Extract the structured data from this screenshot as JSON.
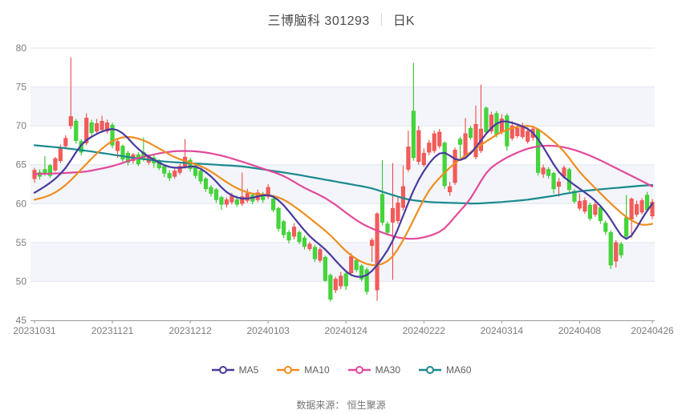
{
  "chart_data": {
    "type": "candlestick",
    "title": "三博脑科 301293",
    "subtitle": "日K",
    "source_note": "数据来源： 恒生聚源",
    "y_axis": {
      "min": 45,
      "max": 80,
      "ticks": [
        80,
        75,
        70,
        65,
        60,
        55,
        50,
        45
      ]
    },
    "x_axis": {
      "tick_labels": [
        "20231031",
        "20231121",
        "20231212",
        "20240103",
        "20240124",
        "20240222",
        "20240314",
        "20240408",
        "20240426"
      ],
      "tick_indices": [
        0,
        15,
        30,
        45,
        60,
        75,
        90,
        105,
        119
      ],
      "total_candles": 120
    },
    "legend": [
      {
        "label": "MA5",
        "color": "#473a9e"
      },
      {
        "label": "MA10",
        "color": "#ef8d20"
      },
      {
        "label": "MA30",
        "color": "#e2499b"
      },
      {
        "label": "MA60",
        "color": "#198a8e"
      }
    ],
    "colors": {
      "up": "#f25c5a",
      "up_stroke": "#ef4b49",
      "down": "#44d63a",
      "down_stroke": "#30c426",
      "grid": "#e2e6f0",
      "band": "#f3f5fa",
      "axis": "#999999",
      "tick_label": "#7d7d7d",
      "title": "#4a4a4a",
      "legend_label": "#5f5f5f",
      "source": "#757575"
    },
    "candles_format": [
      "open",
      "close",
      "low",
      "high"
    ],
    "candles": [
      [
        63.2,
        64.3,
        62.7,
        64.6
      ],
      [
        64.0,
        63.5,
        63.1,
        64.4
      ],
      [
        64.4,
        63.9,
        63.6,
        66.1
      ],
      [
        64.9,
        63.6,
        63.3,
        65.1
      ],
      [
        64.3,
        65.8,
        64.1,
        66.0
      ],
      [
        65.5,
        67.2,
        65.2,
        67.6
      ],
      [
        67.4,
        68.4,
        67.0,
        68.8
      ],
      [
        70.0,
        71.2,
        69.6,
        78.8
      ],
      [
        70.6,
        68.1,
        67.7,
        70.9
      ],
      [
        68.0,
        66.6,
        66.2,
        68.3
      ],
      [
        67.8,
        71.0,
        67.5,
        71.6
      ],
      [
        70.4,
        69.1,
        68.7,
        70.8
      ],
      [
        69.3,
        70.3,
        68.9,
        70.9
      ],
      [
        69.5,
        70.6,
        69.1,
        71.3
      ],
      [
        69.3,
        70.4,
        69.0,
        70.8
      ],
      [
        70.1,
        67.5,
        67.1,
        70.4
      ],
      [
        66.8,
        68.0,
        65.9,
        68.2
      ],
      [
        67.4,
        65.7,
        65.3,
        67.6
      ],
      [
        66.5,
        65.3,
        64.9,
        66.8
      ],
      [
        65.5,
        66.3,
        65.1,
        66.5
      ],
      [
        66.3,
        65.1,
        64.8,
        66.6
      ],
      [
        66.6,
        65.7,
        65.4,
        68.5
      ],
      [
        65.3,
        66.0,
        65.0,
        66.3
      ],
      [
        65.9,
        65.2,
        64.6,
        66.2
      ],
      [
        65.4,
        64.6,
        64.3,
        65.7
      ],
      [
        64.8,
        63.9,
        63.4,
        65.0
      ],
      [
        63.9,
        63.3,
        62.9,
        64.3
      ],
      [
        63.5,
        64.2,
        63.2,
        64.5
      ],
      [
        64.0,
        64.8,
        63.7,
        65.1
      ],
      [
        64.8,
        66.0,
        64.5,
        68.3
      ],
      [
        65.6,
        64.5,
        64.1,
        65.9
      ],
      [
        64.9,
        63.6,
        63.2,
        65.1
      ],
      [
        64.2,
        62.9,
        62.5,
        64.4
      ],
      [
        63.2,
        61.9,
        61.5,
        63.4
      ],
      [
        62.1,
        61.3,
        60.9,
        62.4
      ],
      [
        61.8,
        60.5,
        60.1,
        62.0
      ],
      [
        60.8,
        59.9,
        59.2,
        61.0
      ],
      [
        59.9,
        60.5,
        59.5,
        60.8
      ],
      [
        60.2,
        61.0,
        59.9,
        61.4
      ],
      [
        60.5,
        59.9,
        59.6,
        61.0
      ],
      [
        60.0,
        60.9,
        59.7,
        64.0
      ],
      [
        60.4,
        61.3,
        60.1,
        61.9
      ],
      [
        61.1,
        60.3,
        59.9,
        61.4
      ],
      [
        60.5,
        61.4,
        60.2,
        61.8
      ],
      [
        61.2,
        60.5,
        60.1,
        61.5
      ],
      [
        60.9,
        62.1,
        60.6,
        62.5
      ],
      [
        60.6,
        59.2,
        58.9,
        60.9
      ],
      [
        59.4,
        56.8,
        56.4,
        59.6
      ],
      [
        57.7,
        56.0,
        55.6,
        57.9
      ],
      [
        56.3,
        55.3,
        54.9,
        56.6
      ],
      [
        55.8,
        57.0,
        55.4,
        57.5
      ],
      [
        56.3,
        55.1,
        54.8,
        56.6
      ],
      [
        55.6,
        54.5,
        54.1,
        55.9
      ],
      [
        54.2,
        54.8,
        53.9,
        55.1
      ],
      [
        54.4,
        52.9,
        52.5,
        54.7
      ],
      [
        52.7,
        54.1,
        52.4,
        54.4
      ],
      [
        53.1,
        50.1,
        50.0,
        53.3
      ],
      [
        50.8,
        47.7,
        47.4,
        51.0
      ],
      [
        48.9,
        50.3,
        48.5,
        50.6
      ],
      [
        49.4,
        50.7,
        49.0,
        51.2
      ],
      [
        51.0,
        49.4,
        48.9,
        51.2
      ],
      [
        51.1,
        53.2,
        50.8,
        53.6
      ],
      [
        52.7,
        51.5,
        51.2,
        53.0
      ],
      [
        52.0,
        50.3,
        50.0,
        52.2
      ],
      [
        51.5,
        48.7,
        48.3,
        51.8
      ],
      [
        54.6,
        55.3,
        52.5,
        55.6
      ],
      [
        48.9,
        58.7,
        47.5,
        58.9
      ],
      [
        61.2,
        57.6,
        57.2,
        65.6
      ],
      [
        57.4,
        56.3,
        55.9,
        57.7
      ],
      [
        57.6,
        59.4,
        50.2,
        65.2
      ],
      [
        57.8,
        60.1,
        57.4,
        61.0
      ],
      [
        59.5,
        62.2,
        59.1,
        64.9
      ],
      [
        64.4,
        67.3,
        64.1,
        69.4
      ],
      [
        71.9,
        65.9,
        65.5,
        78.1
      ],
      [
        65.4,
        69.4,
        65.0,
        70.0
      ],
      [
        65.0,
        66.5,
        64.7,
        67.1
      ],
      [
        66.6,
        67.8,
        66.2,
        68.2
      ],
      [
        66.8,
        69.0,
        66.5,
        69.4
      ],
      [
        67.4,
        69.2,
        67.1,
        69.6
      ],
      [
        67.8,
        62.3,
        61.9,
        68.0
      ],
      [
        61.5,
        62.2,
        61.0,
        62.8
      ],
      [
        62.7,
        66.9,
        62.4,
        67.2
      ],
      [
        68.3,
        67.6,
        65.9,
        68.6
      ],
      [
        65.9,
        69.0,
        65.7,
        71.0
      ],
      [
        69.7,
        68.5,
        68.2,
        70.0
      ],
      [
        66.0,
        70.2,
        65.7,
        72.6
      ],
      [
        66.8,
        69.6,
        66.5,
        75.3
      ],
      [
        72.3,
        69.2,
        68.9,
        72.5
      ],
      [
        69.3,
        71.4,
        69.0,
        71.8
      ],
      [
        71.6,
        68.9,
        68.5,
        71.9
      ],
      [
        69.2,
        70.9,
        68.9,
        71.5
      ],
      [
        71.3,
        67.4,
        66.8,
        71.6
      ],
      [
        68.4,
        70.0,
        68.1,
        70.6
      ],
      [
        68.7,
        69.7,
        68.4,
        70.1
      ],
      [
        68.6,
        69.8,
        68.3,
        70.4
      ],
      [
        68.0,
        69.3,
        67.7,
        69.8
      ],
      [
        68.5,
        69.6,
        68.1,
        70.0
      ],
      [
        69.5,
        64.0,
        63.6,
        69.7
      ],
      [
        63.8,
        64.6,
        63.3,
        65.0
      ],
      [
        64.4,
        63.6,
        63.2,
        64.7
      ],
      [
        63.9,
        61.9,
        61.3,
        64.1
      ],
      [
        62.2,
        62.8,
        60.9,
        63.3
      ],
      [
        63.5,
        64.6,
        63.2,
        64.9
      ],
      [
        64.4,
        61.8,
        61.5,
        64.6
      ],
      [
        61.6,
        60.3,
        60.0,
        61.9
      ],
      [
        59.4,
        60.3,
        59.1,
        61.3
      ],
      [
        59.0,
        60.4,
        58.7,
        60.8
      ],
      [
        59.8,
        58.1,
        57.8,
        60.1
      ],
      [
        58.6,
        59.9,
        58.3,
        60.3
      ],
      [
        59.5,
        57.8,
        57.4,
        59.8
      ],
      [
        57.5,
        56.4,
        56.0,
        57.8
      ],
      [
        56.3,
        52.1,
        51.6,
        56.6
      ],
      [
        52.6,
        55.0,
        51.8,
        55.3
      ],
      [
        54.8,
        53.4,
        53.0,
        55.1
      ],
      [
        58.2,
        55.8,
        55.5,
        61.1
      ],
      [
        58.0,
        60.6,
        55.6,
        60.8
      ],
      [
        58.6,
        59.9,
        58.3,
        60.4
      ],
      [
        58.9,
        60.4,
        58.6,
        60.7
      ],
      [
        61.1,
        59.2,
        58.9,
        61.5
      ],
      [
        58.4,
        60.2,
        58.0,
        60.6
      ]
    ],
    "ma_series": [
      {
        "name": "MA60",
        "color": "#198a8e",
        "anchors": [
          [
            0,
            67.5
          ],
          [
            5,
            67.2
          ],
          [
            10,
            66.8
          ],
          [
            15,
            66.3
          ],
          [
            20,
            65.8
          ],
          [
            25,
            65.4
          ],
          [
            30,
            65.2
          ],
          [
            35,
            65.0
          ],
          [
            40,
            64.8
          ],
          [
            45,
            64.3
          ],
          [
            50,
            63.8
          ],
          [
            55,
            63.2
          ],
          [
            60,
            62.6
          ],
          [
            65,
            62.0
          ],
          [
            68,
            61.3
          ],
          [
            72,
            60.5
          ],
          [
            76,
            60.2
          ],
          [
            80,
            60.1
          ],
          [
            85,
            60.0
          ],
          [
            90,
            60.2
          ],
          [
            95,
            60.5
          ],
          [
            100,
            61.0
          ],
          [
            105,
            61.6
          ],
          [
            110,
            61.9
          ],
          [
            115,
            62.2
          ],
          [
            119,
            62.4
          ]
        ]
      },
      {
        "name": "MA30",
        "color": "#e2499b",
        "anchors": [
          [
            0,
            63.8
          ],
          [
            5,
            63.9
          ],
          [
            10,
            64.1
          ],
          [
            15,
            64.8
          ],
          [
            20,
            65.9
          ],
          [
            25,
            66.6
          ],
          [
            28,
            66.8
          ],
          [
            32,
            66.7
          ],
          [
            36,
            66.2
          ],
          [
            40,
            65.4
          ],
          [
            44,
            64.5
          ],
          [
            48,
            63.6
          ],
          [
            52,
            62.0
          ],
          [
            55,
            61.1
          ],
          [
            58,
            59.9
          ],
          [
            60,
            58.8
          ],
          [
            63,
            57.4
          ],
          [
            66,
            56.5
          ],
          [
            70,
            55.6
          ],
          [
            73,
            55.4
          ],
          [
            76,
            55.8
          ],
          [
            79,
            56.6
          ],
          [
            81,
            58.4
          ],
          [
            84,
            60.5
          ],
          [
            87,
            64.2
          ],
          [
            90,
            65.6
          ],
          [
            93,
            66.6
          ],
          [
            96,
            67.3
          ],
          [
            99,
            67.5
          ],
          [
            102,
            67.3
          ],
          [
            105,
            66.7
          ],
          [
            108,
            65.9
          ],
          [
            111,
            64.9
          ],
          [
            114,
            63.9
          ],
          [
            117,
            62.9
          ],
          [
            119,
            62.2
          ]
        ]
      },
      {
        "name": "MA10",
        "color": "#ef8d20",
        "anchors": [
          [
            0,
            60.5
          ],
          [
            3,
            61.0
          ],
          [
            6,
            62.3
          ],
          [
            9,
            64.4
          ],
          [
            12,
            66.5
          ],
          [
            15,
            68.2
          ],
          [
            18,
            68.7
          ],
          [
            21,
            68.2
          ],
          [
            24,
            67.1
          ],
          [
            27,
            65.9
          ],
          [
            30,
            65.3
          ],
          [
            33,
            64.6
          ],
          [
            36,
            63.2
          ],
          [
            39,
            61.9
          ],
          [
            42,
            61.2
          ],
          [
            45,
            61.2
          ],
          [
            48,
            60.6
          ],
          [
            51,
            59.2
          ],
          [
            54,
            57.6
          ],
          [
            57,
            56.0
          ],
          [
            60,
            53.8
          ],
          [
            63,
            52.4
          ],
          [
            66,
            51.9
          ],
          [
            69,
            52.9
          ],
          [
            72,
            56.5
          ],
          [
            74,
            59.3
          ],
          [
            76,
            61.9
          ],
          [
            78,
            63.3
          ],
          [
            81,
            65.3
          ],
          [
            84,
            66.6
          ],
          [
            87,
            68.0
          ],
          [
            90,
            69.3
          ],
          [
            93,
            69.9
          ],
          [
            96,
            70.1
          ],
          [
            99,
            68.6
          ],
          [
            102,
            66.8
          ],
          [
            105,
            64.0
          ],
          [
            108,
            62.0
          ],
          [
            111,
            60.0
          ],
          [
            114,
            58.2
          ],
          [
            117,
            57.1
          ],
          [
            119,
            57.4
          ]
        ]
      },
      {
        "name": "MA5",
        "color": "#473a9e",
        "anchors": [
          [
            0,
            61.4
          ],
          [
            3,
            62.6
          ],
          [
            6,
            64.4
          ],
          [
            9,
            67.8
          ],
          [
            12,
            69.0
          ],
          [
            15,
            69.8
          ],
          [
            17,
            69.2
          ],
          [
            20,
            66.9
          ],
          [
            23,
            65.6
          ],
          [
            26,
            64.6
          ],
          [
            29,
            64.6
          ],
          [
            31,
            65.0
          ],
          [
            34,
            63.6
          ],
          [
            37,
            61.3
          ],
          [
            40,
            60.5
          ],
          [
            43,
            60.9
          ],
          [
            45,
            61.3
          ],
          [
            47,
            60.6
          ],
          [
            50,
            58.2
          ],
          [
            53,
            55.7
          ],
          [
            56,
            54.2
          ],
          [
            59,
            51.9
          ],
          [
            61,
            50.6
          ],
          [
            64,
            50.5
          ],
          [
            67,
            52.9
          ],
          [
            69,
            55.0
          ],
          [
            71,
            58.4
          ],
          [
            73,
            61.9
          ],
          [
            75,
            64.3
          ],
          [
            77,
            66.1
          ],
          [
            79,
            67.0
          ],
          [
            81,
            65.4
          ],
          [
            83,
            65.6
          ],
          [
            85,
            67.2
          ],
          [
            88,
            69.9
          ],
          [
            90,
            70.8
          ],
          [
            93,
            70.2
          ],
          [
            96,
            69.4
          ],
          [
            99,
            66.2
          ],
          [
            101,
            63.8
          ],
          [
            103,
            62.9
          ],
          [
            105,
            61.9
          ],
          [
            107,
            61.0
          ],
          [
            109,
            59.8
          ],
          [
            111,
            58.1
          ],
          [
            114,
            54.6
          ],
          [
            116,
            56.9
          ],
          [
            118,
            59.2
          ],
          [
            119,
            60.0
          ]
        ]
      }
    ]
  }
}
